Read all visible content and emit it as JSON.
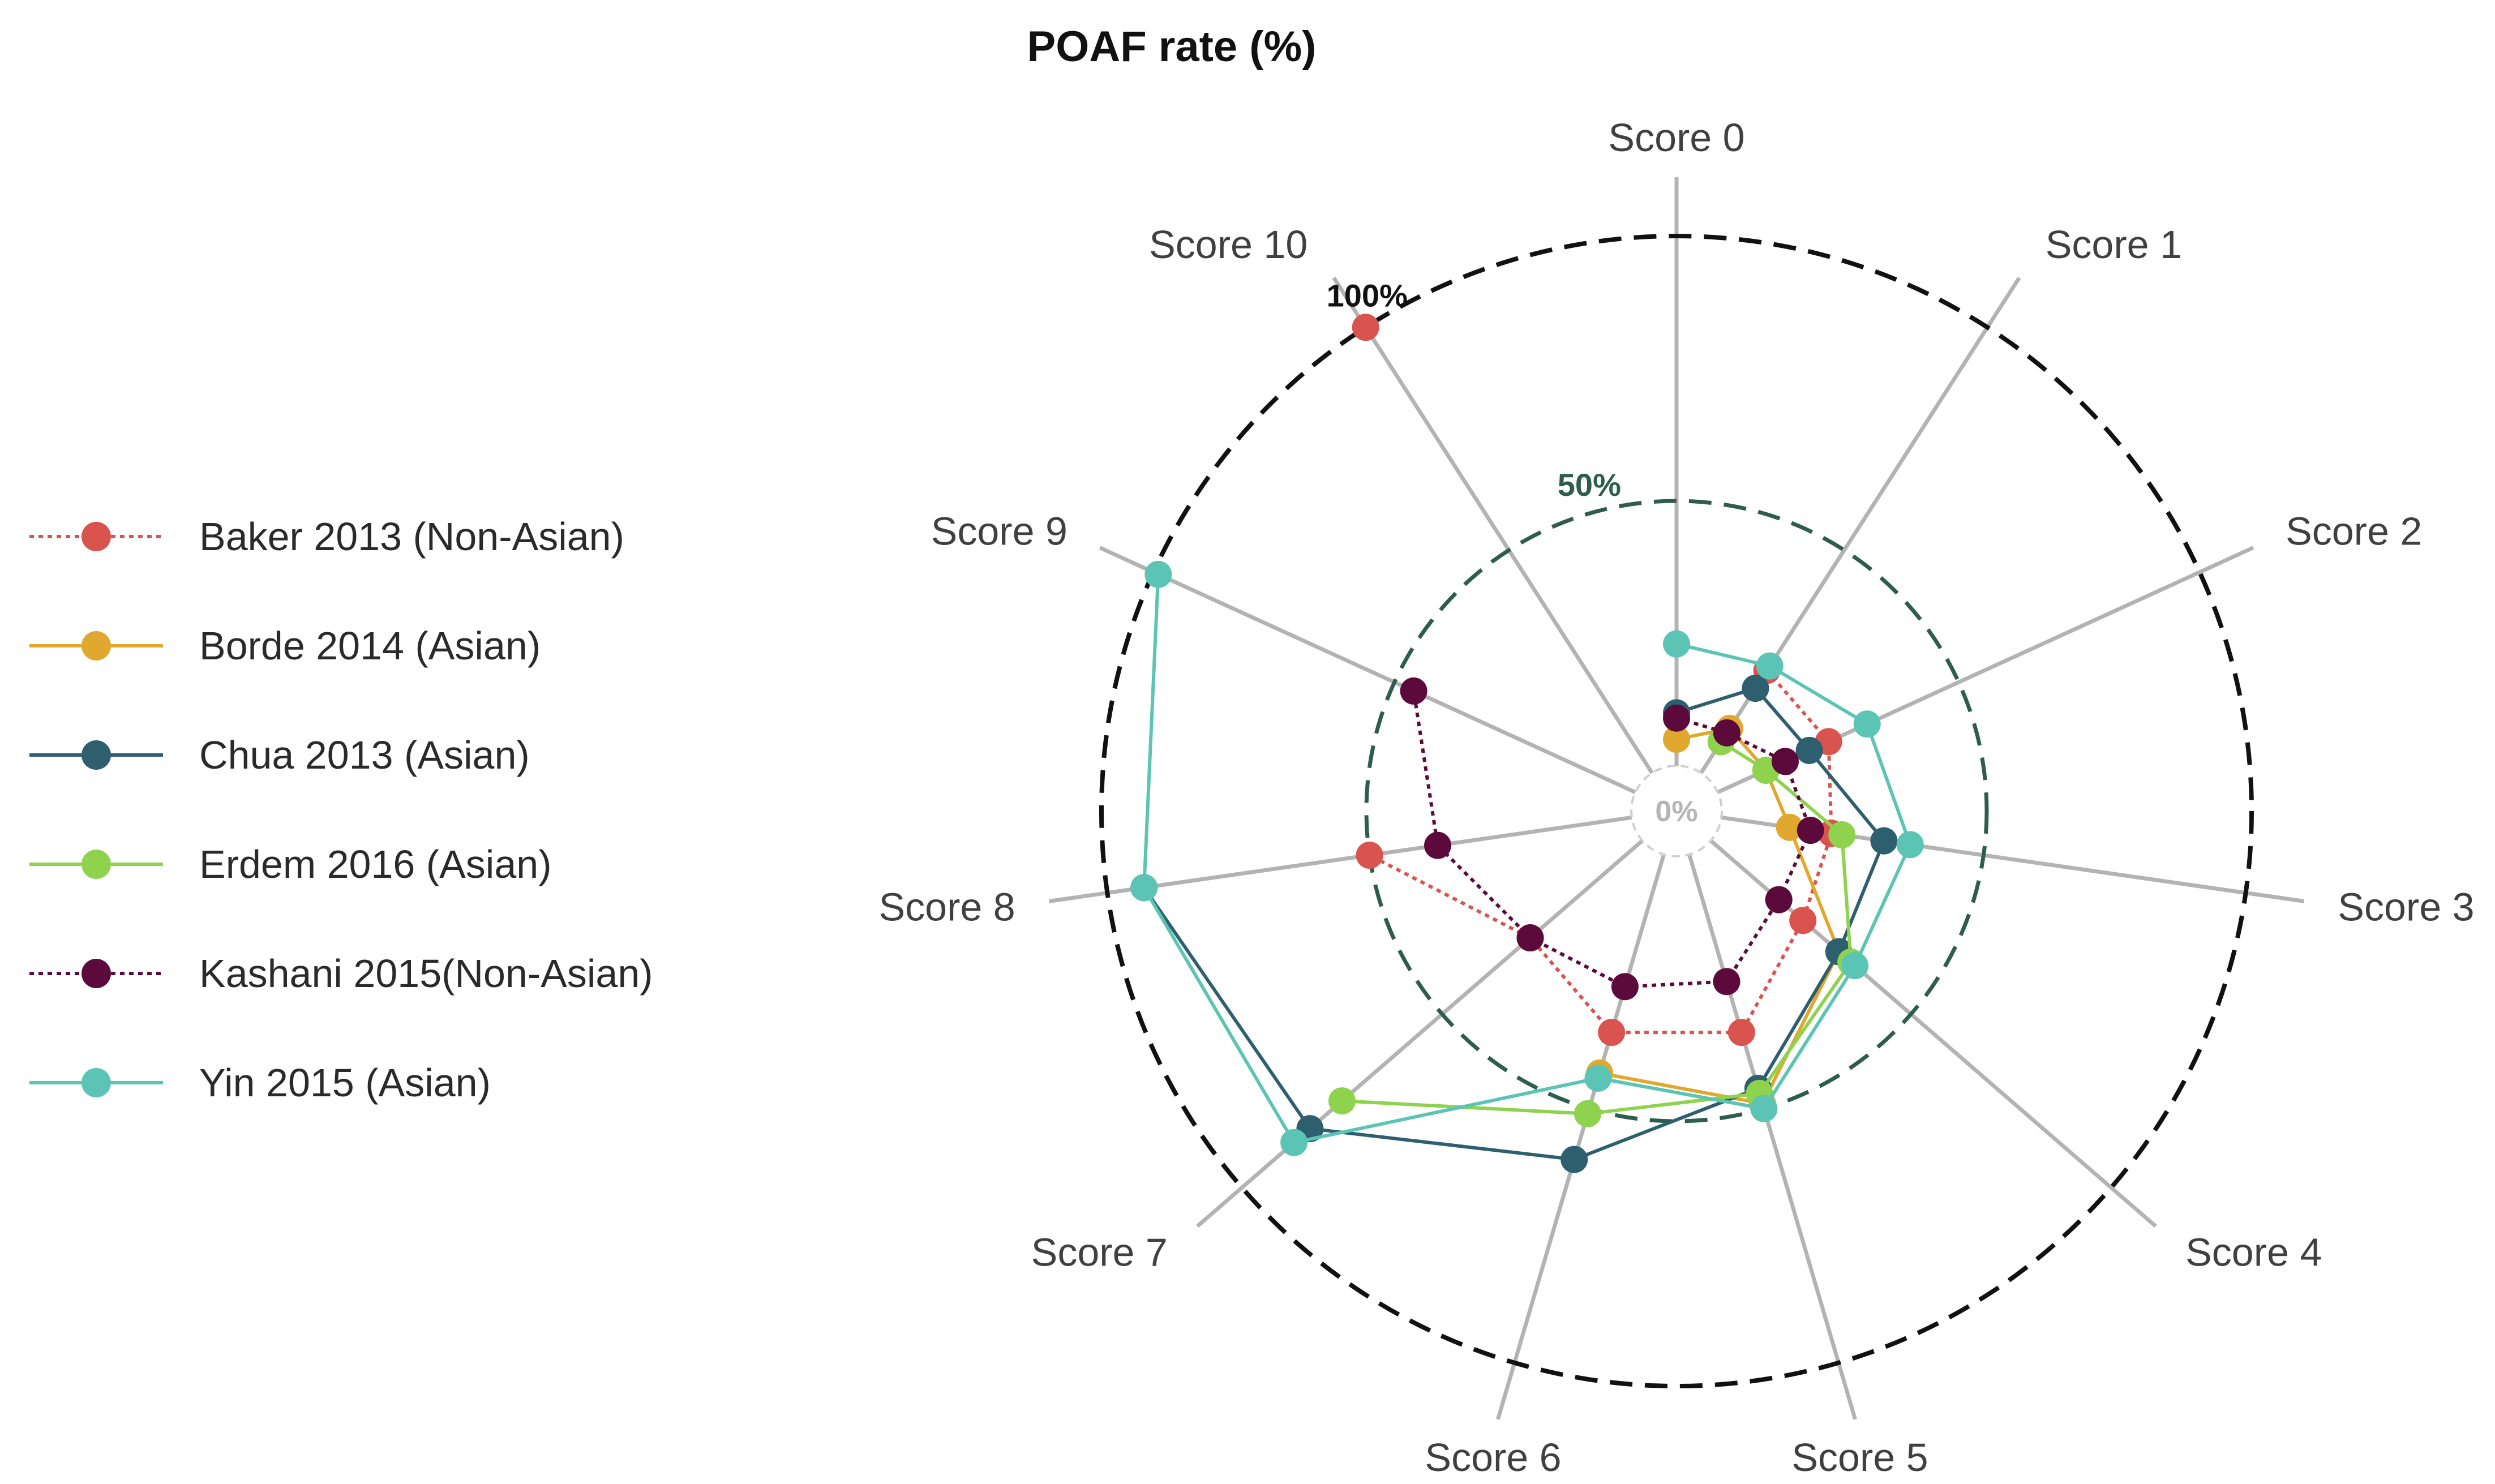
{
  "chart_data": {
    "type": "radar",
    "title": "POAF rate (%)",
    "axes": [
      "Score 0",
      "Score 1",
      "Score 2",
      "Score 3",
      "Score 4",
      "Score 5",
      "Score 6",
      "Score 7",
      "Score 8",
      "Score 9",
      "Score 10"
    ],
    "range": [
      0,
      100
    ],
    "rings": [
      {
        "value": 50,
        "label": "50%",
        "color": "#2e5d4b"
      },
      {
        "value": 100,
        "label": "100%",
        "color": "#111111"
      }
    ],
    "center_label": "0%",
    "series": [
      {
        "name": "Baker 2013 (Non-Asian)",
        "color": "#d9534f",
        "style": "dotted",
        "values": [
          null,
          23,
          23,
          21,
          23,
          35,
          35,
          28,
          50,
          null,
          100
        ]
      },
      {
        "name": "Borde 2014 (Asian)",
        "color": "#e0a82e",
        "style": "solid",
        "values": [
          5,
          10,
          10,
          13,
          32,
          49,
          43,
          null,
          null,
          null,
          null
        ]
      },
      {
        "name": "Chua 2013 (Asian)",
        "color": "#2e5f6e",
        "style": "solid",
        "values": [
          10,
          19,
          19,
          31,
          32,
          46,
          60,
          83,
          93,
          null,
          null
        ]
      },
      {
        "name": "Erdem 2016 (Asian)",
        "color": "#8fd24e",
        "style": "solid",
        "values": [
          null,
          7,
          10,
          23,
          35,
          47,
          51,
          75,
          null,
          null,
          null
        ]
      },
      {
        "name": "Kashani 2015(Non-Asian)",
        "color": "#5b0a3b",
        "style": "dotted",
        "values": [
          9,
          9,
          14,
          17,
          17,
          25,
          26,
          28,
          37,
          46,
          null
        ]
      },
      {
        "name": "Yin 2015 (Asian)",
        "color": "#5cc4b4",
        "style": "solid",
        "values": [
          23,
          24,
          31,
          36,
          36,
          50,
          44,
          87,
          93,
          99,
          null
        ]
      }
    ],
    "legend_position": "left"
  }
}
